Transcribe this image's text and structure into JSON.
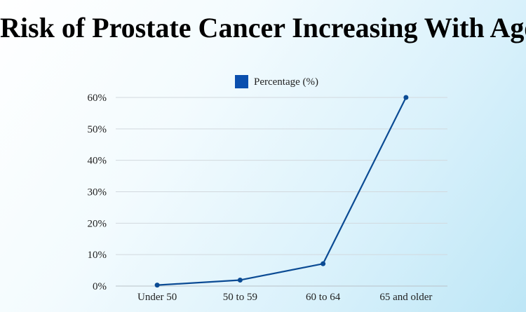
{
  "chart_data": {
    "type": "line",
    "title": "Risk of Prostate Cancer Increasing With Age",
    "categories": [
      "Under 50",
      "50 to 59",
      "60 to 64",
      "65 and older"
    ],
    "series": [
      {
        "name": "Percentage (%)",
        "values": [
          0.3,
          1.9,
          7.1,
          60
        ],
        "color": "#0b4b94"
      }
    ],
    "yticks": [
      "0%",
      "10%",
      "20%",
      "30%",
      "40%",
      "50%",
      "60%"
    ],
    "ylim": [
      0,
      60
    ],
    "grid": true,
    "legend_position": "top",
    "legend_marker_color": "#0b4fae"
  }
}
